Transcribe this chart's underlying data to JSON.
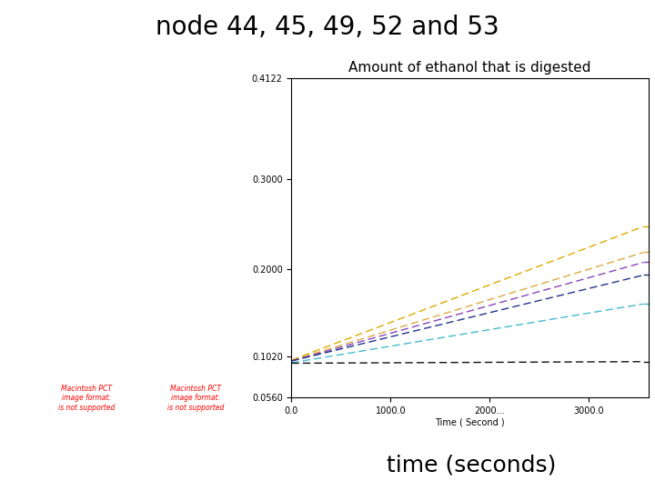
{
  "title": "node 44, 45, 49, 52 and 53",
  "chart_title": "Amount of ethanol that is digested",
  "xlabel_bottom": "time (seconds)",
  "xlabel_inner": "Time ( Second )",
  "xlim": [
    0,
    3600
  ],
  "ylim": [
    0.056,
    0.4122
  ],
  "yticks": [
    0.056,
    0.102,
    0.2,
    0.3,
    0.4122
  ],
  "ytick_labels": [
    "0.0560",
    "0.1020",
    "0.2000",
    "0.3000",
    "0.4122"
  ],
  "xticks": [
    0,
    1000,
    2000,
    3000
  ],
  "xtick_labels": [
    "0.0",
    "1000.0",
    "2000...",
    "3000.0"
  ],
  "lines": [
    {
      "color": "#ddaa00",
      "slope": 4.2e-05,
      "intercept": 0.098,
      "linestyle": "--"
    },
    {
      "color": "#ddaa44",
      "slope": 3.4e-05,
      "intercept": 0.0975,
      "linestyle": "--"
    },
    {
      "color": "#8844bb",
      "slope": 3.1e-05,
      "intercept": 0.097,
      "linestyle": "--"
    },
    {
      "color": "#223388",
      "slope": 2.7e-05,
      "intercept": 0.097,
      "linestyle": "--"
    },
    {
      "color": "#44bbcc",
      "slope": 1.85e-05,
      "intercept": 0.095,
      "linestyle": "--"
    },
    {
      "color": "#111111",
      "slope": 5e-07,
      "intercept": 0.0945,
      "linestyle": "--"
    }
  ],
  "bg_color": "#ffffff",
  "title_fontsize": 20,
  "chart_title_fontsize": 11,
  "xlabel_bottom_fontsize": 18,
  "tick_fontsize": 7,
  "inner_xlabel_fontsize": 7
}
